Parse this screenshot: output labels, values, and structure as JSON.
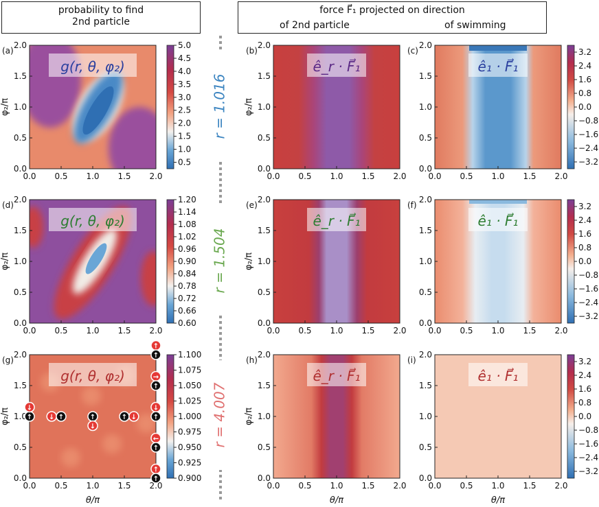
{
  "headers": {
    "left_line1": "probability to find",
    "left_line2": "2nd particle",
    "right_line1": "force F⃗₁ projected on direction",
    "right_sub_left": "of 2nd particle",
    "right_sub_right": "of swimming"
  },
  "colors": {
    "purple": "#8e5aa8",
    "red": "#c8403e",
    "blue": "#3a78b8",
    "r1_label": "#3b84c0",
    "r2_label": "#6aa84f",
    "r3_label": "#e07070",
    "dash": "#999999"
  },
  "row_labels": [
    "r = 1.016",
    "r = 1.504",
    "r = 4.007"
  ],
  "chart_data": [
    {
      "panel": "(a)",
      "type": "heatmap",
      "title": "g(r, θ, φ₂)",
      "xlabel": "",
      "ylabel": "φ₂/π",
      "xlim": [
        0,
        2
      ],
      "ylim": [
        0,
        2
      ],
      "xticks": [
        "0.0",
        "0.5",
        "1.0",
        "1.5",
        "2.0"
      ],
      "yticks": [
        "0.0",
        "0.5",
        "1.0",
        "1.5",
        "2.0"
      ],
      "colorbar": {
        "min": 0.25,
        "max": 5.0,
        "ticks": [
          "5.0",
          "4.5",
          "4.0",
          "3.5",
          "3.0",
          "2.5",
          "2.0",
          "1.5",
          "1.0",
          "0.5"
        ]
      }
    },
    {
      "panel": "(b)",
      "type": "heatmap",
      "title": "ê_r · F⃗₁",
      "xlabel": "",
      "ylabel": "φ₂/π",
      "xlim": [
        0,
        2
      ],
      "ylim": [
        0,
        2
      ],
      "xticks": [
        "0.0",
        "0.5",
        "1.0",
        "1.5",
        "2.0"
      ],
      "yticks": [
        "0.0",
        "0.5",
        "1.0",
        "1.5",
        "2.0"
      ]
    },
    {
      "panel": "(c)",
      "type": "heatmap",
      "title": "ê₁ · F⃗₁",
      "xlabel": "",
      "ylabel": "",
      "xlim": [
        0,
        2
      ],
      "ylim": [
        0,
        2
      ],
      "xticks": [
        "0.0",
        "0.5",
        "1.0",
        "1.5",
        "2.0"
      ],
      "yticks": [
        "0.0",
        "0.5",
        "1.0",
        "1.5",
        "2.0"
      ],
      "colorbar": {
        "min": -3.6,
        "max": 3.6,
        "ticks": [
          "3.2",
          "2.4",
          "1.6",
          "0.8",
          "0.0",
          "−0.8",
          "−1.6",
          "−2.4",
          "−3.2"
        ]
      }
    },
    {
      "panel": "(d)",
      "type": "heatmap",
      "title": "g(r, θ, φ₂)",
      "xlabel": "",
      "ylabel": "φ₂/π",
      "xlim": [
        0,
        2
      ],
      "ylim": [
        0,
        2
      ],
      "xticks": [
        "0.0",
        "0.5",
        "1.0",
        "1.5",
        "2.0"
      ],
      "yticks": [
        "0.0",
        "0.5",
        "1.0",
        "1.5",
        "2.0"
      ],
      "colorbar": {
        "min": 0.6,
        "max": 1.2,
        "ticks": [
          "1.20",
          "1.14",
          "1.08",
          "1.02",
          "0.96",
          "0.90",
          "0.84",
          "0.78",
          "0.72",
          "0.66",
          "0.60"
        ]
      }
    },
    {
      "panel": "(e)",
      "type": "heatmap",
      "title": "ê_r · F⃗₁",
      "xlabel": "",
      "ylabel": "φ₂/π",
      "xlim": [
        0,
        2
      ],
      "ylim": [
        0,
        2
      ],
      "xticks": [
        "0.0",
        "0.5",
        "1.0",
        "1.5",
        "2.0"
      ],
      "yticks": [
        "0.0",
        "0.5",
        "1.0",
        "1.5",
        "2.0"
      ]
    },
    {
      "panel": "(f)",
      "type": "heatmap",
      "title": "ê₁ · F⃗₁",
      "xlabel": "",
      "ylabel": "",
      "xlim": [
        0,
        2
      ],
      "ylim": [
        0,
        2
      ],
      "xticks": [
        "0.0",
        "0.5",
        "1.0",
        "1.5",
        "2.0"
      ],
      "yticks": [
        "0.0",
        "0.5",
        "1.0",
        "1.5",
        "2.0"
      ],
      "colorbar": {
        "min": -3.6,
        "max": 3.6,
        "ticks": [
          "3.2",
          "2.4",
          "1.6",
          "0.8",
          "0.0",
          "−0.8",
          "−1.6",
          "−2.4",
          "−3.2"
        ]
      }
    },
    {
      "panel": "(g)",
      "type": "heatmap",
      "title": "g(r, θ, φ₂)",
      "xlabel": "θ/π",
      "ylabel": "φ₂/π",
      "xlim": [
        0,
        2
      ],
      "ylim": [
        0,
        2
      ],
      "xticks": [
        "0.0",
        "0.5",
        "1.0",
        "1.5",
        "2.0"
      ],
      "yticks": [
        "0.0",
        "0.5",
        "1.0",
        "1.5",
        "2.0"
      ],
      "colorbar": {
        "min": 0.9,
        "max": 1.1,
        "ticks": [
          "1.100",
          "1.075",
          "1.050",
          "1.025",
          "1.000",
          "0.975",
          "0.950",
          "0.925",
          "0.900"
        ]
      }
    },
    {
      "panel": "(h)",
      "type": "heatmap",
      "title": "ê_r · F⃗₁",
      "xlabel": "θ/π",
      "ylabel": "φ₂/π",
      "xlim": [
        0,
        2
      ],
      "ylim": [
        0,
        2
      ],
      "xticks": [
        "0.0",
        "0.5",
        "1.0",
        "1.5",
        "2.0"
      ],
      "yticks": [
        "0.0",
        "0.5",
        "1.0",
        "1.5",
        "2.0"
      ]
    },
    {
      "panel": "(i)",
      "type": "heatmap",
      "title": "ê₁ · F⃗₁",
      "xlabel": "θ/π",
      "ylabel": "",
      "xlim": [
        0,
        2
      ],
      "ylim": [
        0,
        2
      ],
      "xticks": [
        "0.0",
        "0.5",
        "1.0",
        "1.5",
        "2.0"
      ],
      "yticks": [
        "0.0",
        "0.5",
        "1.0",
        "1.5",
        "2.0"
      ],
      "colorbar": {
        "min": -3.6,
        "max": 3.6,
        "ticks": [
          "3.2",
          "2.4",
          "1.6",
          "0.8",
          "0.0",
          "−0.8",
          "−1.6",
          "−2.4",
          "−3.2"
        ]
      }
    }
  ]
}
